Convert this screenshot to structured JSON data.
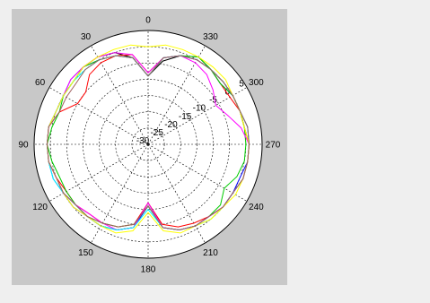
{
  "chart_data": {
    "type": "polar-line",
    "angle_direction": "counterclockwise",
    "zero_angle_location": "top",
    "angle_ticks": [
      {
        "deg": 0,
        "label": "0"
      },
      {
        "deg": 30,
        "label": "30"
      },
      {
        "deg": 60,
        "label": "60"
      },
      {
        "deg": 90,
        "label": "90"
      },
      {
        "deg": 120,
        "label": "120"
      },
      {
        "deg": 150,
        "label": "150"
      },
      {
        "deg": 180,
        "label": "180"
      },
      {
        "deg": 210,
        "label": "210"
      },
      {
        "deg": 240,
        "label": "240"
      },
      {
        "deg": 270,
        "label": "270"
      },
      {
        "deg": 300,
        "label": "300"
      },
      {
        "deg": 330,
        "label": "330"
      }
    ],
    "radial_axis": {
      "range_db": [
        -30,
        5
      ],
      "ticks": [
        "5",
        "0",
        "-5",
        "-10",
        "-15",
        "-20",
        "-25",
        "-30"
      ],
      "tick_angle_deg": 300
    },
    "grid": true,
    "theta_deg": [
      0,
      10,
      20,
      30,
      40,
      50,
      60,
      70,
      80,
      90,
      100,
      110,
      120,
      130,
      140,
      150,
      160,
      170,
      180,
      190,
      200,
      210,
      220,
      230,
      240,
      250,
      260,
      270,
      280,
      290,
      300,
      310,
      320,
      330,
      340,
      350
    ],
    "series": [
      {
        "color": "#000000",
        "values": [
          -9,
          -3,
          0,
          1,
          1,
          0,
          0,
          0,
          1,
          1,
          1,
          0,
          0,
          -1,
          -1,
          -1,
          -2,
          -4,
          -12,
          -4,
          -2,
          -1,
          -1,
          0,
          0,
          1,
          1,
          1,
          0,
          0,
          0,
          0,
          0,
          1,
          -1,
          -4
        ]
      },
      {
        "color": "#0000ff",
        "values": [
          -9,
          -3,
          -1,
          0,
          1,
          1,
          0,
          0,
          1,
          1,
          1,
          1,
          0,
          0,
          -1,
          -1,
          -2,
          -4,
          -11,
          -4,
          -2,
          -1,
          -1,
          0,
          0,
          0,
          1,
          1,
          1,
          0,
          0,
          -1,
          0,
          0,
          -1,
          -3
        ]
      },
      {
        "color": "#ff0000",
        "values": [
          -8,
          -2,
          -1,
          -1,
          -2,
          -5,
          -5,
          -1,
          1,
          1,
          1,
          0,
          -1,
          -1,
          -2,
          -2,
          -3,
          -5,
          -12,
          -5,
          -3,
          -2,
          -1,
          0,
          0,
          1,
          1,
          1,
          0,
          0,
          -1,
          -1,
          0,
          0,
          -1,
          -3
        ]
      },
      {
        "color": "#00cc00",
        "values": [
          -9,
          -3,
          -1,
          0,
          1,
          0,
          0,
          -1,
          0,
          1,
          0,
          -1,
          -1,
          -1,
          -1,
          -2,
          -3,
          -5,
          -11,
          -4,
          -2,
          -1,
          -1,
          -1,
          -3,
          -1,
          0,
          0,
          0,
          0,
          0,
          -1,
          0,
          1,
          -1,
          -3
        ]
      },
      {
        "color": "#ff00ff",
        "values": [
          -8,
          -2,
          0,
          1,
          1,
          1,
          0,
          0,
          1,
          1,
          1,
          0,
          0,
          -1,
          -2,
          -2,
          -2,
          -4,
          -12,
          -4,
          -2,
          -1,
          -1,
          0,
          0,
          1,
          1,
          1,
          -1,
          -4,
          -6,
          -4,
          -2,
          -1,
          -1,
          -3
        ]
      },
      {
        "color": "#00ffff",
        "values": [
          -9,
          -3,
          -1,
          0,
          0,
          0,
          0,
          0,
          1,
          1,
          1,
          1,
          0,
          -1,
          -1,
          -1,
          -2,
          -4,
          -10,
          -4,
          -2,
          -1,
          0,
          0,
          0,
          1,
          1,
          1,
          1,
          0,
          0,
          0,
          0,
          0,
          -1,
          -3
        ]
      },
      {
        "color": "#ffff00",
        "values": [
          0,
          1,
          1,
          1,
          1,
          0,
          0,
          0,
          1,
          1,
          1,
          0,
          0,
          0,
          -1,
          -1,
          -1,
          -3,
          -9,
          -3,
          -1,
          -1,
          0,
          0,
          1,
          1,
          1,
          1,
          0,
          0,
          0,
          1,
          1,
          1,
          1,
          1
        ]
      },
      {
        "color": "#a06060",
        "values": [
          -9,
          -3,
          -1,
          0,
          0,
          -1,
          -1,
          -1,
          1,
          1,
          1,
          0,
          0,
          -1,
          -1,
          -2,
          -3,
          -5,
          -11,
          -4,
          -2,
          -1,
          -1,
          0,
          0,
          1,
          1,
          1,
          1,
          0,
          0,
          0,
          0,
          0,
          -1,
          -3
        ]
      }
    ]
  }
}
